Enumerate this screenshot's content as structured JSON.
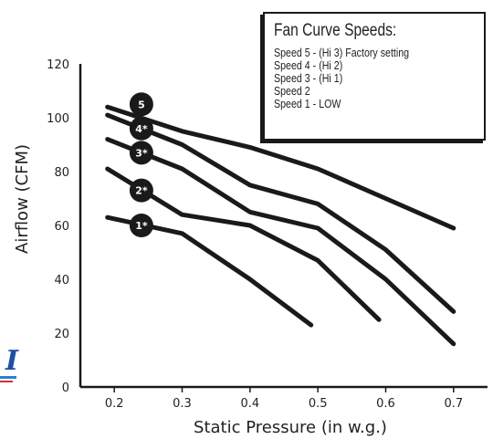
{
  "chart_data": {
    "type": "line",
    "title": "",
    "xlabel": "Static Pressure (in w.g.)",
    "ylabel": "Airflow (CFM)",
    "xlim": [
      0.15,
      0.75
    ],
    "ylim": [
      0,
      120
    ],
    "x_ticks": [
      "0.2",
      "0.3",
      "0.4",
      "0.5",
      "0.6",
      "0.7"
    ],
    "y_ticks": [
      "0",
      "20",
      "40",
      "60",
      "80",
      "100",
      "120"
    ],
    "grid": false,
    "legend": {
      "title": "Fan Curve Speeds:",
      "placement": "top-right",
      "entries": [
        "Speed 5 - (Hi 3) Factory setting",
        "Speed 4 - (Hi 2)",
        "Speed 3 - (Hi 1)",
        "Speed 2",
        "Speed 1 - LOW"
      ]
    },
    "series": [
      {
        "name": "5",
        "x": [
          0.19,
          0.3,
          0.4,
          0.5,
          0.6,
          0.7
        ],
        "y": [
          104,
          95,
          89,
          81,
          70,
          59
        ]
      },
      {
        "name": "4*",
        "x": [
          0.19,
          0.3,
          0.4,
          0.5,
          0.6,
          0.7
        ],
        "y": [
          101,
          90,
          75,
          68,
          51,
          28
        ]
      },
      {
        "name": "3*",
        "x": [
          0.19,
          0.3,
          0.4,
          0.5,
          0.6,
          0.7
        ],
        "y": [
          92,
          81,
          65,
          59,
          40,
          16
        ]
      },
      {
        "name": "2*",
        "x": [
          0.19,
          0.3,
          0.4,
          0.5,
          0.59
        ],
        "y": [
          81,
          64,
          60,
          47,
          25
        ]
      },
      {
        "name": "1*",
        "x": [
          0.19,
          0.3,
          0.4,
          0.49
        ],
        "y": [
          63,
          57,
          40,
          23
        ]
      }
    ],
    "markers": [
      {
        "label": "5",
        "x": 0.24,
        "y": 105
      },
      {
        "label": "4*",
        "x": 0.24,
        "y": 96
      },
      {
        "label": "3*",
        "x": 0.24,
        "y": 87
      },
      {
        "label": "2*",
        "x": 0.24,
        "y": 73
      },
      {
        "label": "1*",
        "x": 0.24,
        "y": 60
      }
    ]
  },
  "logo": {
    "letter": "I",
    "color": "#1f4fa0"
  }
}
